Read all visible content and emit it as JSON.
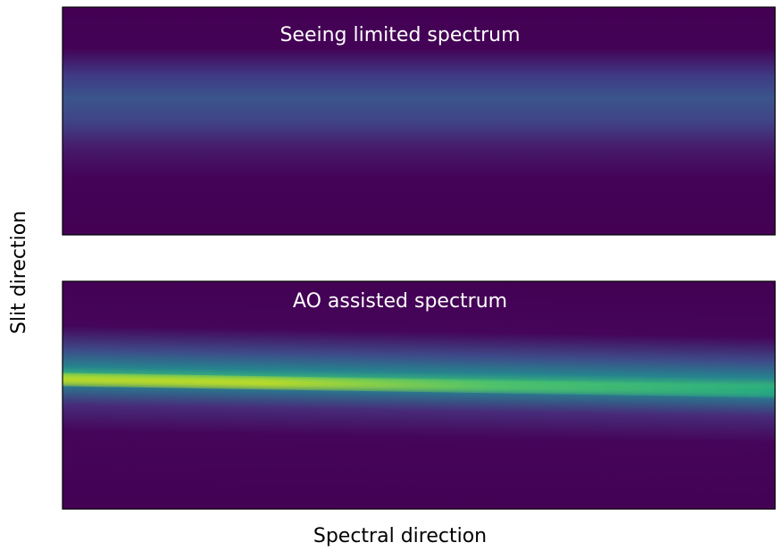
{
  "figure": {
    "panels": [
      {
        "title": "Seeing limited spectrum"
      },
      {
        "title": "AO assisted spectrum"
      }
    ],
    "xlabel": "Spectral direction",
    "ylabel": "Slit direction"
  }
}
